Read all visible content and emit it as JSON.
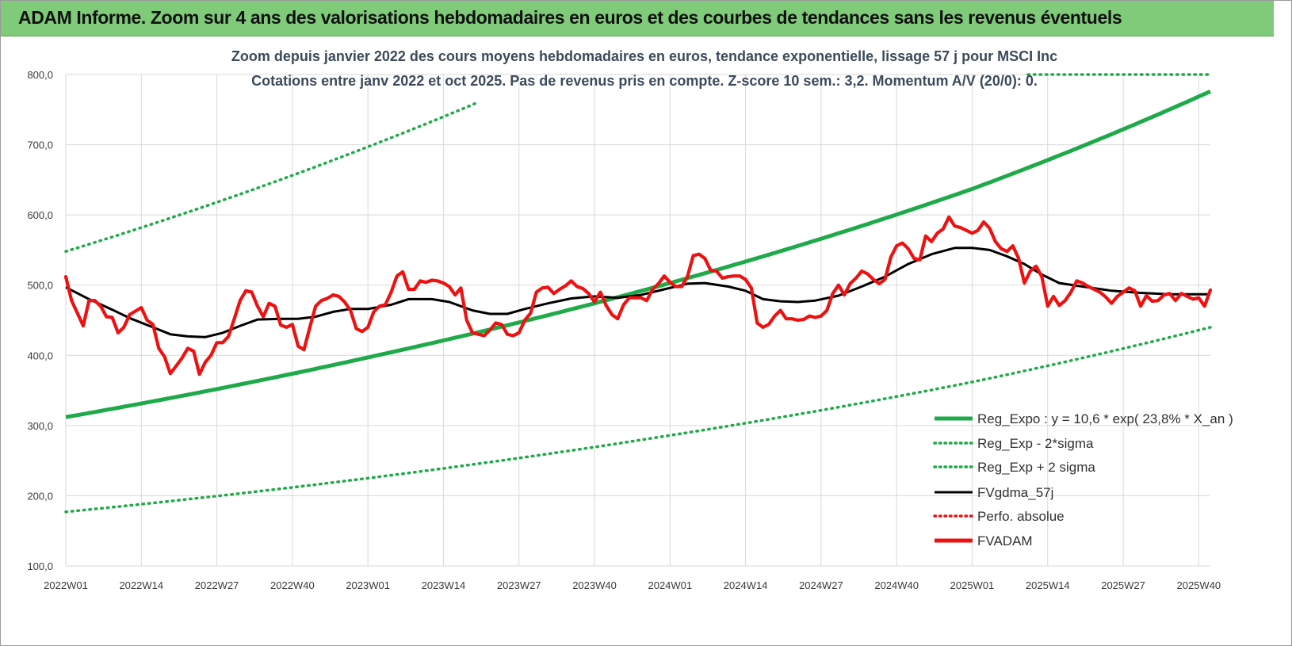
{
  "banner": {
    "title": "ADAM Informe. Zoom sur 4 ans des valorisations hebdomadaires en euros et des courbes de tendances sans les revenus éventuels"
  },
  "colors": {
    "banner": "#7fcb7a",
    "trend": "#1faa4a",
    "band": "#1faa4a",
    "smooth": "#000000",
    "price": "#ee1111",
    "grid": "#d9d9d9"
  },
  "chart_data": {
    "type": "line",
    "title": "Zoom depuis janvier 2022 des cours moyens hebdomadaires en euros, tendance exponentielle, lissage 57 j pour MSCI Inc",
    "subtitle": "Cotations entre janv 2022 et oct 2025. Pas de revenus pris en compte. Z-score 10 sem.: 3,2. Momentum A/V (20/0): 0.",
    "xlabel": "",
    "ylabel": "",
    "ylim": [
      100,
      800
    ],
    "y_ticks": [
      100,
      200,
      300,
      400,
      500,
      600,
      700,
      800
    ],
    "y_tick_labels": [
      "100,0",
      "200,0",
      "300,0",
      "400,0",
      "500,0",
      "600,0",
      "700,0",
      "800,0"
    ],
    "x_range": [
      "2022W01",
      "2025W42"
    ],
    "x_ticks": [
      "2022W01",
      "2022W14",
      "2022W27",
      "2022W40",
      "2023W01",
      "2023W14",
      "2023W27",
      "2023W40",
      "2024W01",
      "2024W14",
      "2024W27",
      "2024W40",
      "2025W01",
      "2025W14",
      "2025W27",
      "2025W40"
    ],
    "grid": true,
    "legend_position": "bottom-right",
    "series": [
      {
        "name": "Reg_Expo : y = 10,6 * exp( 23,8% *  X_an )",
        "style": "solid",
        "color": "#1faa4a",
        "anchors": [
          [
            "2022W01",
            312
          ],
          [
            "2023W01",
            397
          ],
          [
            "2024W01",
            503
          ],
          [
            "2025W01",
            637
          ],
          [
            "2025W42",
            776
          ]
        ]
      },
      {
        "name": "Reg_Exp - 2*sigma",
        "style": "dotted",
        "color": "#1faa4a",
        "anchors": [
          [
            "2022W01",
            177
          ],
          [
            "2023W01",
            225
          ],
          [
            "2024W01",
            286
          ],
          [
            "2025W01",
            362
          ],
          [
            "2025W42",
            440
          ]
        ]
      },
      {
        "name": "Reg_Exp + 2 sigma",
        "style": "dotted",
        "color": "#1faa4a",
        "clip_at": 800,
        "anchors": [
          [
            "2022W01",
            548
          ],
          [
            "2023W01",
            697
          ],
          [
            "2024W01",
            885
          ],
          [
            "2025W01",
            1122
          ],
          [
            "2025W42",
            1366
          ]
        ]
      },
      {
        "name": "FVgdma_57j",
        "style": "solid",
        "color": "#000000",
        "points": [
          [
            "2022W01",
            497
          ],
          [
            "2022W05",
            480
          ],
          [
            "2022W09",
            465
          ],
          [
            "2022W12",
            453
          ],
          [
            "2022W16",
            440
          ],
          [
            "2022W19",
            430
          ],
          [
            "2022W22",
            427
          ],
          [
            "2022W25",
            426
          ],
          [
            "2022W28",
            432
          ],
          [
            "2022W31",
            442
          ],
          [
            "2022W34",
            451
          ],
          [
            "2022W38",
            452
          ],
          [
            "2022W41",
            452
          ],
          [
            "2022W44",
            455
          ],
          [
            "2022W47",
            462
          ],
          [
            "2022W50",
            466
          ],
          [
            "2023W01",
            466
          ],
          [
            "2023W05",
            472
          ],
          [
            "2023W08",
            480
          ],
          [
            "2023W12",
            480
          ],
          [
            "2023W15",
            476
          ],
          [
            "2023W19",
            464
          ],
          [
            "2023W22",
            459
          ],
          [
            "2023W25",
            459
          ],
          [
            "2023W28",
            466
          ],
          [
            "2023W32",
            474
          ],
          [
            "2023W36",
            481
          ],
          [
            "2023W40",
            484
          ],
          [
            "2023W44",
            482
          ],
          [
            "2023W48",
            486
          ],
          [
            "2023W52",
            494
          ],
          [
            "2024W04",
            502
          ],
          [
            "2024W07",
            503
          ],
          [
            "2024W11",
            498
          ],
          [
            "2024W14",
            492
          ],
          [
            "2024W17",
            480
          ],
          [
            "2024W20",
            477
          ],
          [
            "2024W23",
            476
          ],
          [
            "2024W26",
            478
          ],
          [
            "2024W30",
            485
          ],
          [
            "2024W34",
            498
          ],
          [
            "2024W38",
            512
          ],
          [
            "2024W42",
            530
          ],
          [
            "2024W46",
            544
          ],
          [
            "2024W50",
            553
          ],
          [
            "2025W01",
            553
          ],
          [
            "2025W04",
            550
          ],
          [
            "2025W07",
            541
          ],
          [
            "2025W10",
            530
          ],
          [
            "2025W13",
            515
          ],
          [
            "2025W16",
            503
          ],
          [
            "2025W20",
            498
          ],
          [
            "2025W25",
            492
          ],
          [
            "2025W30",
            489
          ],
          [
            "2025W35",
            487
          ],
          [
            "2025W42",
            487
          ]
        ]
      },
      {
        "name": "Perfo. absolue",
        "style": "dotted",
        "color": "#ee1111",
        "points": []
      },
      {
        "name": "FVADAM",
        "style": "solid-thick",
        "color": "#ee1111",
        "points": [
          [
            "2022W01",
            512
          ],
          [
            "2022W02",
            478
          ],
          [
            "2022W03",
            460
          ],
          [
            "2022W04",
            442
          ],
          [
            "2022W05",
            478
          ],
          [
            "2022W06",
            478
          ],
          [
            "2022W07",
            470
          ],
          [
            "2022W08",
            455
          ],
          [
            "2022W09",
            454
          ],
          [
            "2022W10",
            432
          ],
          [
            "2022W11",
            440
          ],
          [
            "2022W12",
            458
          ],
          [
            "2022W13",
            463
          ],
          [
            "2022W14",
            468
          ],
          [
            "2022W15",
            450
          ],
          [
            "2022W16",
            444
          ],
          [
            "2022W17",
            410
          ],
          [
            "2022W18",
            398
          ],
          [
            "2022W19",
            374
          ],
          [
            "2022W20",
            385
          ],
          [
            "2022W21",
            396
          ],
          [
            "2022W22",
            410
          ],
          [
            "2022W23",
            406
          ],
          [
            "2022W24",
            373
          ],
          [
            "2022W25",
            390
          ],
          [
            "2022W26",
            400
          ],
          [
            "2022W27",
            418
          ],
          [
            "2022W28",
            418
          ],
          [
            "2022W29",
            427
          ],
          [
            "2022W30",
            452
          ],
          [
            "2022W31",
            478
          ],
          [
            "2022W32",
            492
          ],
          [
            "2022W33",
            490
          ],
          [
            "2022W34",
            470
          ],
          [
            "2022W35",
            455
          ],
          [
            "2022W36",
            474
          ],
          [
            "2022W37",
            470
          ],
          [
            "2022W38",
            443
          ],
          [
            "2022W39",
            440
          ],
          [
            "2022W40",
            444
          ],
          [
            "2022W41",
            413
          ],
          [
            "2022W42",
            408
          ],
          [
            "2022W43",
            440
          ],
          [
            "2022W44",
            470
          ],
          [
            "2022W45",
            478
          ],
          [
            "2022W46",
            481
          ],
          [
            "2022W47",
            486
          ],
          [
            "2022W48",
            484
          ],
          [
            "2022W49",
            476
          ],
          [
            "2022W50",
            464
          ],
          [
            "2022W51",
            438
          ],
          [
            "2022W52",
            434
          ],
          [
            "2023W01",
            440
          ],
          [
            "2023W02",
            462
          ],
          [
            "2023W03",
            470
          ],
          [
            "2023W04",
            472
          ],
          [
            "2023W05",
            490
          ],
          [
            "2023W06",
            513
          ],
          [
            "2023W07",
            519
          ],
          [
            "2023W08",
            494
          ],
          [
            "2023W09",
            494
          ],
          [
            "2023W10",
            506
          ],
          [
            "2023W11",
            504
          ],
          [
            "2023W12",
            507
          ],
          [
            "2023W13",
            506
          ],
          [
            "2023W14",
            503
          ],
          [
            "2023W15",
            498
          ],
          [
            "2023W16",
            486
          ],
          [
            "2023W17",
            496
          ],
          [
            "2023W18",
            450
          ],
          [
            "2023W19",
            432
          ],
          [
            "2023W20",
            430
          ],
          [
            "2023W21",
            428
          ],
          [
            "2023W22",
            436
          ],
          [
            "2023W23",
            446
          ],
          [
            "2023W24",
            444
          ],
          [
            "2023W25",
            430
          ],
          [
            "2023W26",
            428
          ],
          [
            "2023W27",
            432
          ],
          [
            "2023W28",
            450
          ],
          [
            "2023W29",
            460
          ],
          [
            "2023W30",
            490
          ],
          [
            "2023W31",
            496
          ],
          [
            "2023W32",
            497
          ],
          [
            "2023W33",
            488
          ],
          [
            "2023W34",
            494
          ],
          [
            "2023W35",
            499
          ],
          [
            "2023W36",
            506
          ],
          [
            "2023W37",
            498
          ],
          [
            "2023W38",
            495
          ],
          [
            "2023W39",
            488
          ],
          [
            "2023W40",
            476
          ],
          [
            "2023W41",
            490
          ],
          [
            "2023W42",
            471
          ],
          [
            "2023W43",
            458
          ],
          [
            "2023W44",
            452
          ],
          [
            "2023W45",
            472
          ],
          [
            "2023W46",
            482
          ],
          [
            "2023W47",
            482
          ],
          [
            "2023W48",
            482
          ],
          [
            "2023W49",
            478
          ],
          [
            "2023W50",
            494
          ],
          [
            "2023W51",
            502
          ],
          [
            "2023W52",
            513
          ],
          [
            "2024W01",
            504
          ],
          [
            "2024W02",
            498
          ],
          [
            "2024W03",
            498
          ],
          [
            "2024W04",
            512
          ],
          [
            "2024W05",
            542
          ],
          [
            "2024W06",
            544
          ],
          [
            "2024W07",
            538
          ],
          [
            "2024W08",
            521
          ],
          [
            "2024W09",
            520
          ],
          [
            "2024W10",
            510
          ],
          [
            "2024W11",
            512
          ],
          [
            "2024W12",
            513
          ],
          [
            "2024W13",
            513
          ],
          [
            "2024W14",
            508
          ],
          [
            "2024W15",
            496
          ],
          [
            "2024W16",
            446
          ],
          [
            "2024W17",
            440
          ],
          [
            "2024W18",
            444
          ],
          [
            "2024W19",
            456
          ],
          [
            "2024W20",
            464
          ],
          [
            "2024W21",
            452
          ],
          [
            "2024W22",
            452
          ],
          [
            "2024W23",
            450
          ],
          [
            "2024W24",
            451
          ],
          [
            "2024W25",
            456
          ],
          [
            "2024W26",
            454
          ],
          [
            "2024W27",
            456
          ],
          [
            "2024W28",
            464
          ],
          [
            "2024W29",
            488
          ],
          [
            "2024W30",
            500
          ],
          [
            "2024W31",
            486
          ],
          [
            "2024W32",
            502
          ],
          [
            "2024W33",
            510
          ],
          [
            "2024W34",
            520
          ],
          [
            "2024W35",
            516
          ],
          [
            "2024W36",
            508
          ],
          [
            "2024W37",
            502
          ],
          [
            "2024W38",
            508
          ],
          [
            "2024W39",
            540
          ],
          [
            "2024W40",
            556
          ],
          [
            "2024W41",
            560
          ],
          [
            "2024W42",
            552
          ],
          [
            "2024W43",
            538
          ],
          [
            "2024W44",
            536
          ],
          [
            "2024W45",
            570
          ],
          [
            "2024W46",
            562
          ],
          [
            "2024W47",
            574
          ],
          [
            "2024W48",
            580
          ],
          [
            "2024W49",
            597
          ],
          [
            "2024W50",
            584
          ],
          [
            "2024W51",
            582
          ],
          [
            "2024W52",
            578
          ],
          [
            "2025W01",
            574
          ],
          [
            "2025W02",
            578
          ],
          [
            "2025W03",
            590
          ],
          [
            "2025W04",
            581
          ],
          [
            "2025W05",
            562
          ],
          [
            "2025W06",
            552
          ],
          [
            "2025W07",
            548
          ],
          [
            "2025W08",
            556
          ],
          [
            "2025W09",
            538
          ],
          [
            "2025W10",
            503
          ],
          [
            "2025W11",
            520
          ],
          [
            "2025W12",
            527
          ],
          [
            "2025W13",
            512
          ],
          [
            "2025W14",
            470
          ],
          [
            "2025W15",
            484
          ],
          [
            "2025W16",
            471
          ],
          [
            "2025W17",
            478
          ],
          [
            "2025W18",
            490
          ],
          [
            "2025W19",
            506
          ],
          [
            "2025W20",
            503
          ],
          [
            "2025W21",
            498
          ],
          [
            "2025W22",
            494
          ],
          [
            "2025W23",
            490
          ],
          [
            "2025W24",
            483
          ],
          [
            "2025W25",
            474
          ],
          [
            "2025W26",
            484
          ],
          [
            "2025W27",
            490
          ],
          [
            "2025W28",
            496
          ],
          [
            "2025W29",
            492
          ],
          [
            "2025W30",
            470
          ],
          [
            "2025W31",
            485
          ],
          [
            "2025W32",
            477
          ],
          [
            "2025W33",
            478
          ],
          [
            "2025W34",
            486
          ],
          [
            "2025W35",
            488
          ],
          [
            "2025W36",
            478
          ],
          [
            "2025W37",
            488
          ],
          [
            "2025W38",
            484
          ],
          [
            "2025W39",
            480
          ],
          [
            "2025W40",
            482
          ],
          [
            "2025W41",
            470
          ],
          [
            "2025W42",
            493
          ]
        ]
      }
    ]
  }
}
